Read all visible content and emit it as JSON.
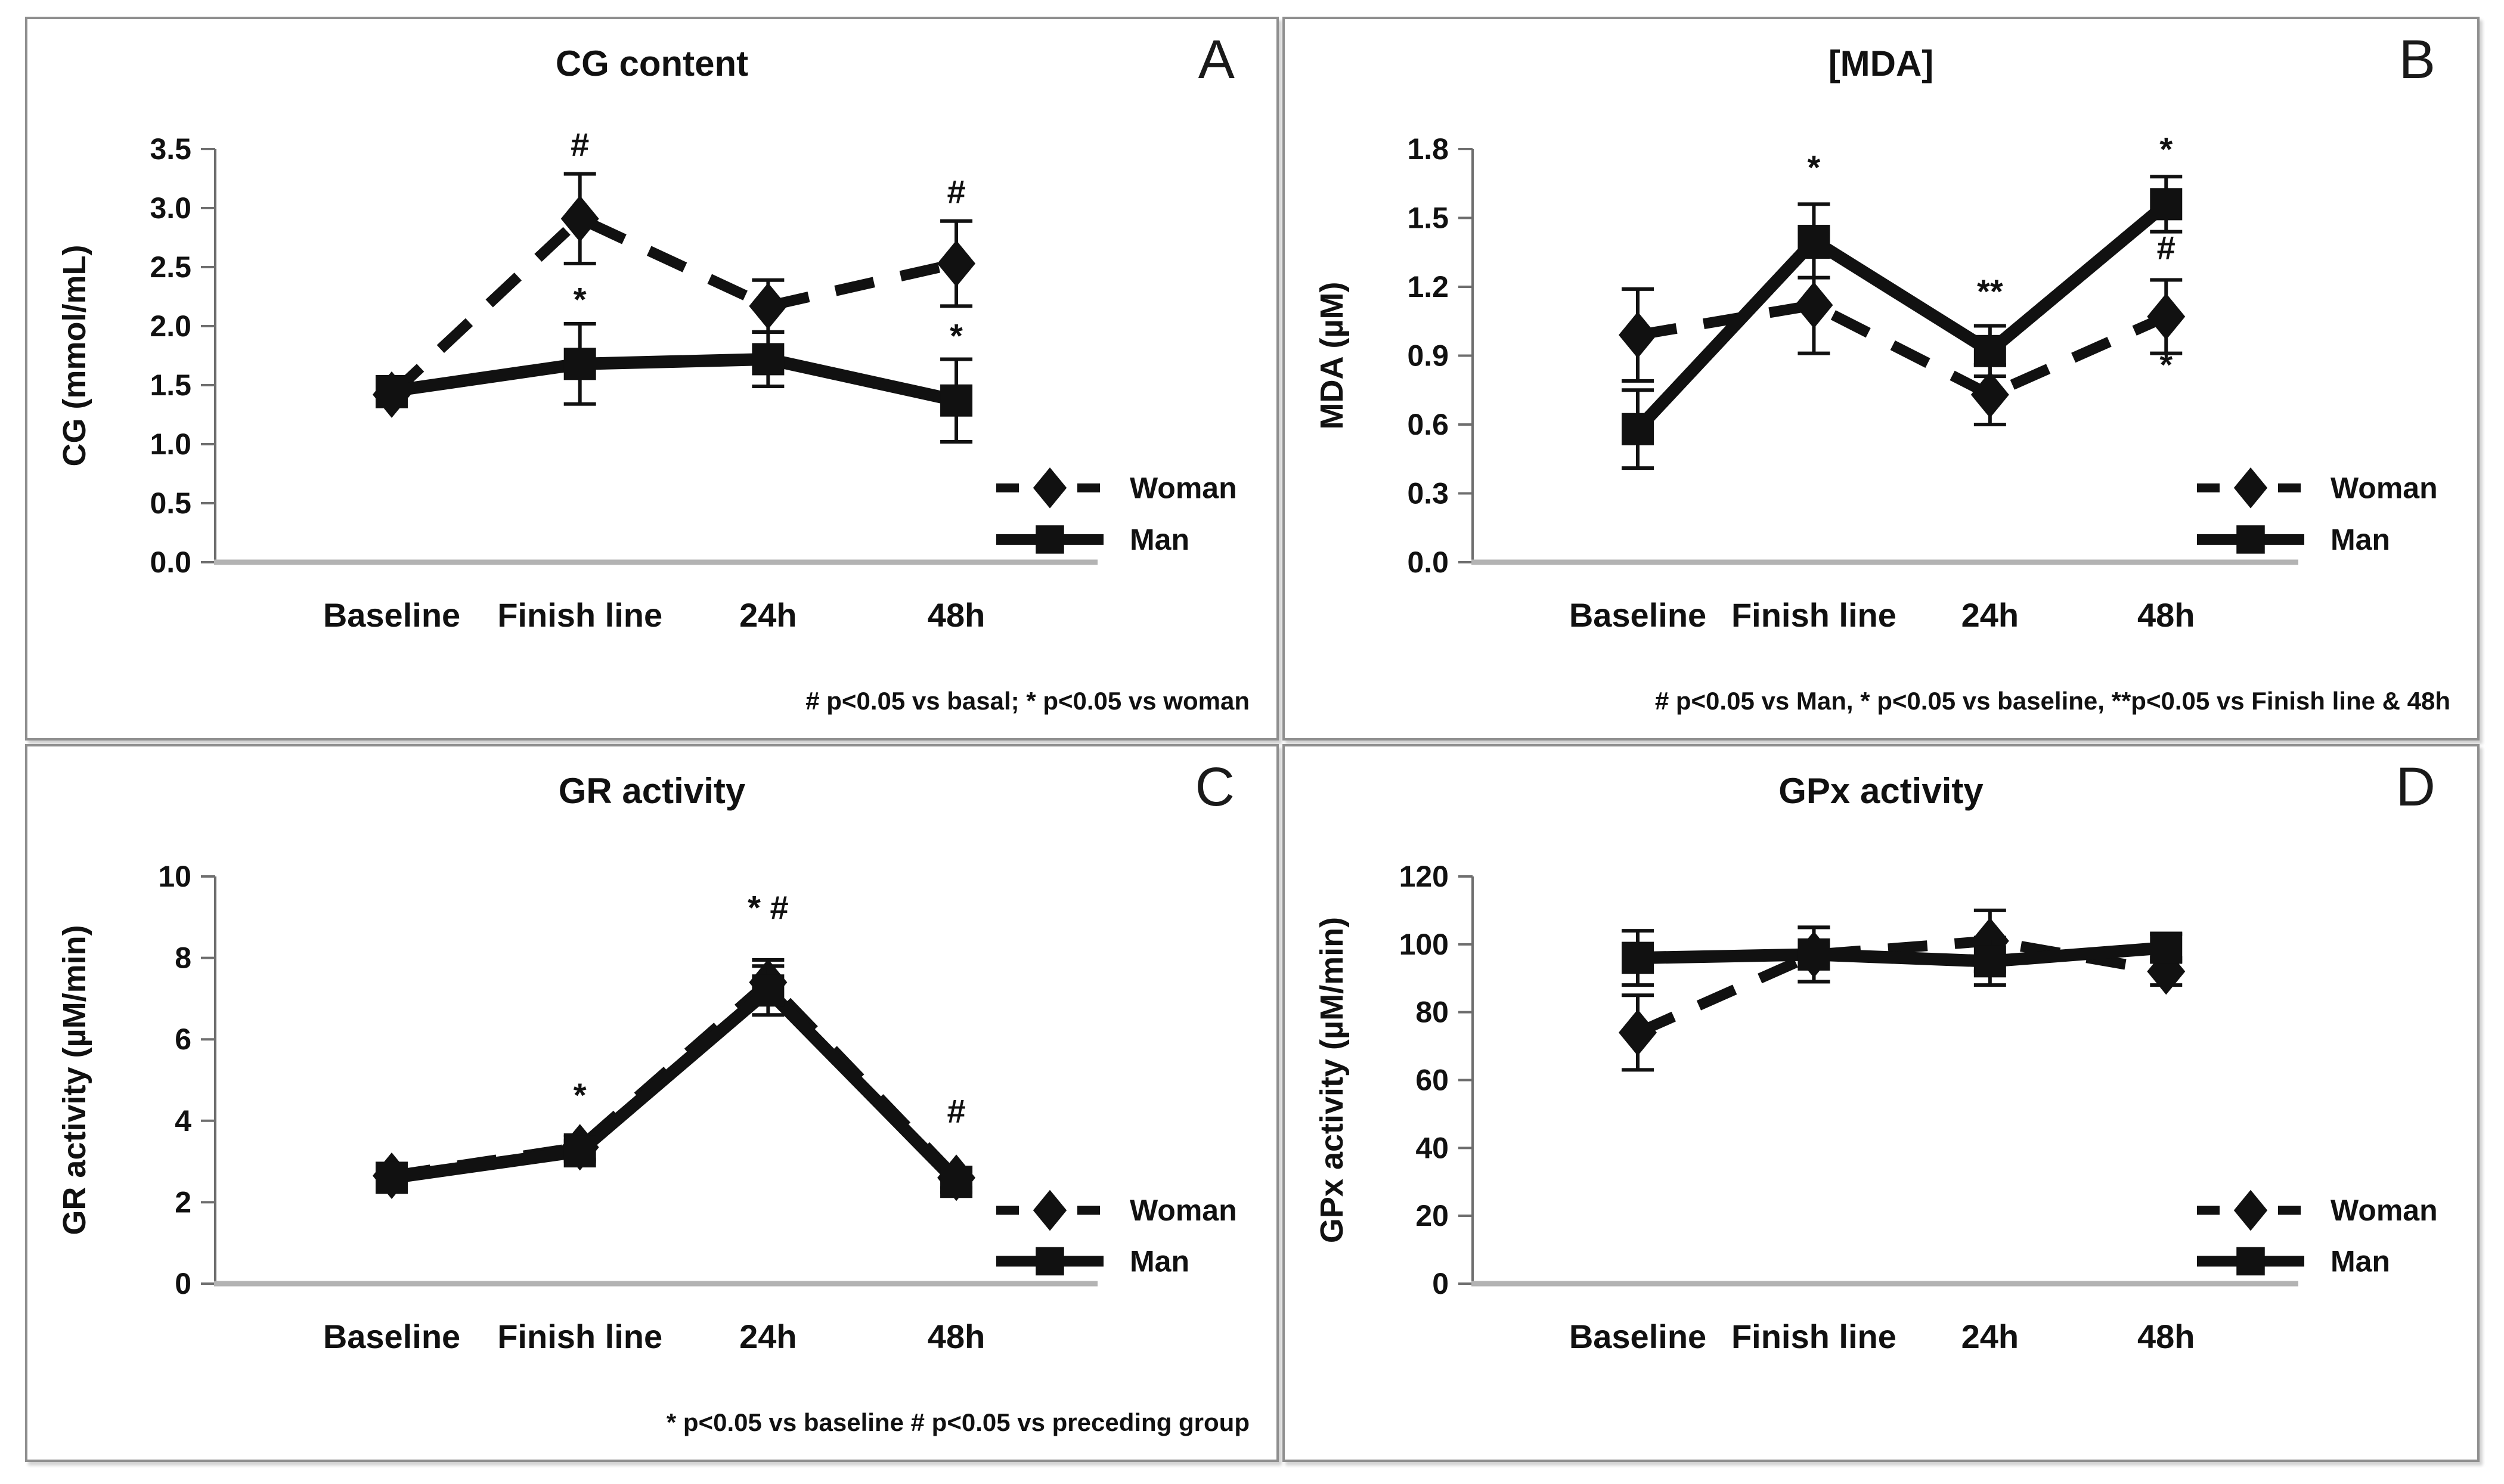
{
  "chart_data": [
    {
      "type": "line",
      "panel_label": "A",
      "title": "CG content",
      "ylabel": "CG (mmol/mL)",
      "categories": [
        "Baseline",
        "Finish line",
        "24h",
        "48h"
      ],
      "ylim": [
        0,
        3.5
      ],
      "yticks": [
        "3.5",
        "3.0",
        "2.5",
        "2.0",
        "1.5",
        "1.0",
        "0.5",
        "0.0"
      ],
      "grid": false,
      "legend_position": "lower-right",
      "series": [
        {
          "name": "Woman",
          "style": "dashed",
          "marker": "diamond",
          "values": [
            1.42,
            2.91,
            2.17,
            2.53
          ],
          "errors": [
            0.1,
            0.38,
            0.22,
            0.36
          ]
        },
        {
          "name": "Man",
          "style": "solid",
          "marker": "square",
          "values": [
            1.45,
            1.68,
            1.72,
            1.37
          ],
          "errors": [
            0.12,
            0.34,
            0.23,
            0.35
          ]
        }
      ],
      "annotations": [
        {
          "text": "#",
          "x": 1,
          "y": 3.44
        },
        {
          "text": "*",
          "x": 1,
          "y": 2.13
        },
        {
          "text": "#",
          "x": 3,
          "y": 3.04
        },
        {
          "text": "*",
          "x": 3,
          "y": 1.82
        }
      ],
      "footnote": "# p<0.05 vs basal;  * p<0.05 vs woman"
    },
    {
      "type": "line",
      "panel_label": "B",
      "title": "[MDA]",
      "ylabel": "MDA (µM)",
      "categories": [
        "Baseline",
        "Finish line",
        "24h",
        "48h"
      ],
      "ylim": [
        0,
        1.8
      ],
      "yticks": [
        "1.8",
        "1.5",
        "1.2",
        "0.9",
        "0.6",
        "0.3",
        "0.0"
      ],
      "grid": false,
      "legend_position": "lower-right",
      "series": [
        {
          "name": "Woman",
          "style": "dashed",
          "marker": "diamond",
          "values": [
            0.99,
            1.12,
            0.73,
            1.07
          ],
          "errors": [
            0.2,
            0.21,
            0.13,
            0.16
          ]
        },
        {
          "name": "Man",
          "style": "solid",
          "marker": "square",
          "values": [
            0.58,
            1.4,
            0.92,
            1.56
          ],
          "errors": [
            0.17,
            0.16,
            0.11,
            0.12
          ]
        }
      ],
      "annotations": [
        {
          "text": "*",
          "x": 1,
          "y": 1.67
        },
        {
          "text": "**",
          "x": 2,
          "y": 1.13
        },
        {
          "text": "*",
          "x": 3,
          "y": 1.75
        },
        {
          "text": "#",
          "x": 3,
          "y": 1.32
        },
        {
          "text": "*",
          "x": 3,
          "y": 0.81
        }
      ],
      "footnote": "# p<0.05 vs Man, * p<0.05 vs baseline, **p<0.05 vs Finish line & 48h"
    },
    {
      "type": "line",
      "panel_label": "C",
      "title": "GR activity",
      "ylabel": "GR activity (µM/min)",
      "categories": [
        "Baseline",
        "Finish line",
        "24h",
        "48h"
      ],
      "ylim": [
        0,
        10
      ],
      "yticks": [
        "10",
        "8",
        "6",
        "4",
        "2",
        "0"
      ],
      "grid": false,
      "legend_position": "lower-right",
      "series": [
        {
          "name": "Woman",
          "style": "dashed",
          "marker": "diamond",
          "values": [
            2.65,
            3.35,
            7.4,
            2.6
          ],
          "errors": [
            0.25,
            0.3,
            0.55,
            0.25
          ]
        },
        {
          "name": "Man",
          "style": "solid",
          "marker": "square",
          "values": [
            2.6,
            3.25,
            7.2,
            2.5
          ],
          "errors": [
            0.3,
            0.25,
            0.6,
            0.25
          ]
        }
      ],
      "annotations": [
        {
          "text": "*",
          "x": 1,
          "y": 4.35
        },
        {
          "text": "* #",
          "x": 2,
          "y": 8.95
        },
        {
          "text": "#",
          "x": 3,
          "y": 3.95
        }
      ],
      "footnote": "* p<0.05 vs baseline # p<0.05 vs preceding group"
    },
    {
      "type": "line",
      "panel_label": "D",
      "title": "GPx activity",
      "ylabel": "GPx activity (µM/min)",
      "categories": [
        "Baseline",
        "Finish line",
        "24h",
        "48h"
      ],
      "ylim": [
        0,
        120
      ],
      "yticks": [
        "120",
        "100",
        "80",
        "60",
        "40",
        "20",
        "0"
      ],
      "grid": false,
      "legend_position": "lower-right",
      "series": [
        {
          "name": "Woman",
          "style": "dashed",
          "marker": "diamond",
          "values": [
            74,
            97,
            101,
            92
          ],
          "errors": [
            11,
            8,
            9,
            4
          ]
        },
        {
          "name": "Man",
          "style": "solid",
          "marker": "square",
          "values": [
            96,
            97,
            95,
            99
          ],
          "errors": [
            8,
            8,
            7,
            4
          ]
        }
      ],
      "annotations": [],
      "footnote": ""
    }
  ],
  "colors": {
    "series": "#111111",
    "text": "#111111",
    "y_axis": "#6e6e6e",
    "x_axis": "#b3b3b3",
    "panel_border": "#8f8f8f"
  }
}
